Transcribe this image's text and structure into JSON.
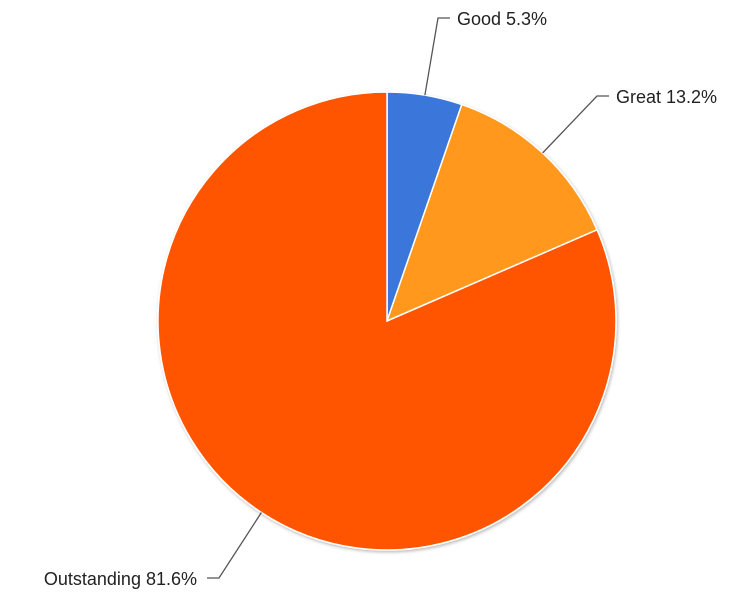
{
  "chart_data": {
    "type": "pie",
    "title": "",
    "start": "12 o'clock",
    "direction": "clockwise",
    "slices": [
      {
        "name": "Good",
        "value": 5.3,
        "label": "Good 5.3%",
        "color": "#3a76db"
      },
      {
        "name": "Great",
        "value": 13.2,
        "label": "Great 13.2%",
        "color": "#ff981f"
      },
      {
        "name": "Outstanding",
        "value": 81.6,
        "label": "Outstanding 81.6%",
        "color": "#ff5500"
      }
    ]
  }
}
